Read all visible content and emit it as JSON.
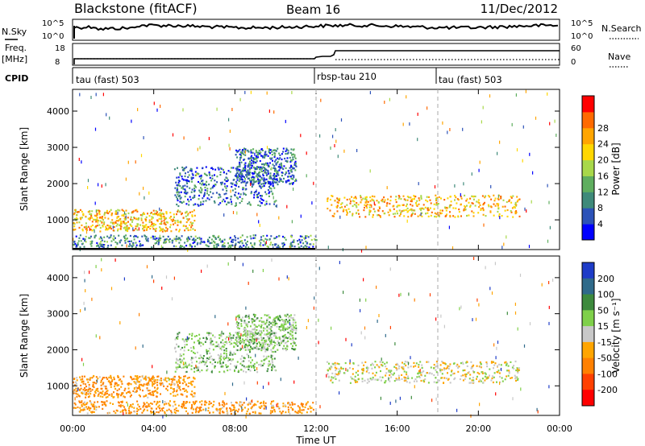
{
  "header": {
    "radar": "Blackstone (fitACF)",
    "beam": "Beam 16",
    "date": "11/Dec/2012"
  },
  "top_panel": {
    "nsky_label": "N.Sky",
    "nsky_ticks": [
      "10^5",
      "10^0"
    ],
    "nsearch_label": "N.Search",
    "nsearch_ticks": [
      "10^5",
      "10^0"
    ],
    "freq_label": "Freq.",
    "freq_unit": "[MHz]",
    "freq_ticks": [
      "18",
      "8"
    ],
    "nave_label": "Nave",
    "nave_ticks": [
      "60",
      "0"
    ],
    "cpid_label": "CPID",
    "cpid_segments": [
      {
        "name": "tau (fast) 503",
        "start_hour": 0
      },
      {
        "name": "rbsp-tau 210",
        "start_hour": 12
      },
      {
        "name": "tau (fast) 503",
        "start_hour": 18
      }
    ]
  },
  "chart_data": [
    {
      "type": "heatmap",
      "parameter": "Power",
      "ylabel": "Slant Range [km]",
      "xlabel": "",
      "x_ticks": [
        "00:00",
        "04:00",
        "08:00",
        "12:00",
        "16:00",
        "20:00",
        "00:00"
      ],
      "y_ticks": [
        1000,
        2000,
        3000,
        4000
      ],
      "ylim": [
        180,
        4600
      ],
      "xlim_hours": [
        0,
        24
      ],
      "colorbar_label": "Power [dB]",
      "colorbar_ticks": [
        4,
        8,
        12,
        16,
        20,
        24,
        28
      ],
      "colorbar_colors": [
        "#0000ff",
        "#2c52b8",
        "#3f8a7a",
        "#5fae5f",
        "#a8d84a",
        "#ffd700",
        "#ffa500",
        "#ff6a00",
        "#ff0000"
      ],
      "regions": [
        {
          "hours": [
            0,
            6
          ],
          "range_km": [
            700,
            1300
          ],
          "power_db": 24
        },
        {
          "hours": [
            0,
            12
          ],
          "range_km": [
            250,
            600
          ],
          "power_db": 10
        },
        {
          "hours": [
            5,
            10
          ],
          "range_km": [
            1400,
            2500
          ],
          "power_db": 8
        },
        {
          "hours": [
            8,
            11
          ],
          "range_km": [
            2000,
            3000
          ],
          "power_db": 8
        },
        {
          "hours": [
            12.5,
            22
          ],
          "range_km": [
            1100,
            1700
          ],
          "power_db": 24
        }
      ]
    },
    {
      "type": "heatmap",
      "parameter": "Velocity",
      "ylabel": "Slant Range [km]",
      "xlabel": "Time UT",
      "x_ticks": [
        "00:00",
        "04:00",
        "08:00",
        "12:00",
        "16:00",
        "20:00",
        "00:00"
      ],
      "y_ticks": [
        1000,
        2000,
        3000,
        4000
      ],
      "ylim": [
        180,
        4600
      ],
      "xlim_hours": [
        0,
        24
      ],
      "colorbar_label": "Velocity [m s⁻¹]",
      "colorbar_ticks": [
        200,
        100,
        50,
        15,
        -15,
        -50,
        -100,
        -200
      ],
      "colorbar_colors": [
        "#1e3cc8",
        "#2f6a8a",
        "#3d8a3d",
        "#7fd04a",
        "#c8c8c8",
        "#ffa500",
        "#ff8000",
        "#ff4000",
        "#ff0000"
      ],
      "regions": [
        {
          "hours": [
            0,
            6
          ],
          "range_km": [
            700,
            1300
          ],
          "velocity_ms": -50
        },
        {
          "hours": [
            0,
            12
          ],
          "range_km": [
            250,
            600
          ],
          "velocity_ms": -50
        },
        {
          "hours": [
            5,
            10
          ],
          "range_km": [
            1400,
            2500
          ],
          "velocity_ms": 30
        },
        {
          "hours": [
            8,
            11
          ],
          "range_km": [
            2000,
            3000
          ],
          "velocity_ms": 30
        },
        {
          "hours": [
            12.5,
            22
          ],
          "range_km": [
            1100,
            1700
          ],
          "velocity_ms": 0
        }
      ]
    }
  ]
}
